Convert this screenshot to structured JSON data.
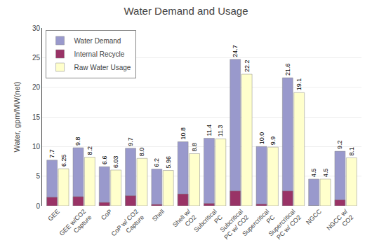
{
  "chart_data": {
    "type": "bar",
    "title": "Water Demand and Usage",
    "ylabel": "Water, gpm/MW(net)",
    "categories": [
      "GEE",
      "GEE w/CO2\nCapture",
      "CoP",
      "CoP w/ CO2\nCapture",
      "Shell",
      "Shell w/\nCO2",
      "Subcritical\nPC",
      "Subcritical\nPC w/ CO2",
      "Supercritical\nPC",
      "Supercritical\nPC w/ CO2",
      "NGCC",
      "NGCC w/\nCO2"
    ],
    "series": [
      {
        "name": "Water Demand",
        "color": "#9999cc",
        "values": [
          7.7,
          9.8,
          6.6,
          9.7,
          6.2,
          10.8,
          11.4,
          24.7,
          10.0,
          21.6,
          4.5,
          9.2
        ],
        "value_labels": [
          "7.7",
          "9.8",
          "6.6",
          "9.7",
          "6.2",
          "10.8",
          "11.4",
          "24.7",
          "10.0",
          "21.6",
          "4.5",
          "9.2"
        ]
      },
      {
        "name": "Internal Recycle",
        "color": "#993366",
        "values": [
          1.45,
          1.55,
          0.57,
          1.7,
          0.24,
          2.0,
          0.4,
          2.5,
          0.3,
          2.5,
          0.0,
          1.0
        ]
      },
      {
        "name": "Raw Water Usage",
        "color": "#ffffcc",
        "values": [
          6.25,
          8.2,
          6.03,
          8.0,
          5.96,
          8.8,
          11.3,
          22.2,
          9.9,
          19.1,
          4.5,
          8.1
        ],
        "value_labels": [
          "6.25",
          "8.2",
          "6.03",
          "8.0",
          "5.96",
          "8.8",
          "11.3",
          "22.2",
          "9.9",
          "19.1",
          "4.5",
          "8.1"
        ]
      }
    ],
    "ylim": [
      0,
      30
    ],
    "yticks": [
      0,
      5,
      10,
      15,
      20,
      25,
      30
    ],
    "grid": true,
    "legend": "upper left",
    "data_labels": true
  }
}
